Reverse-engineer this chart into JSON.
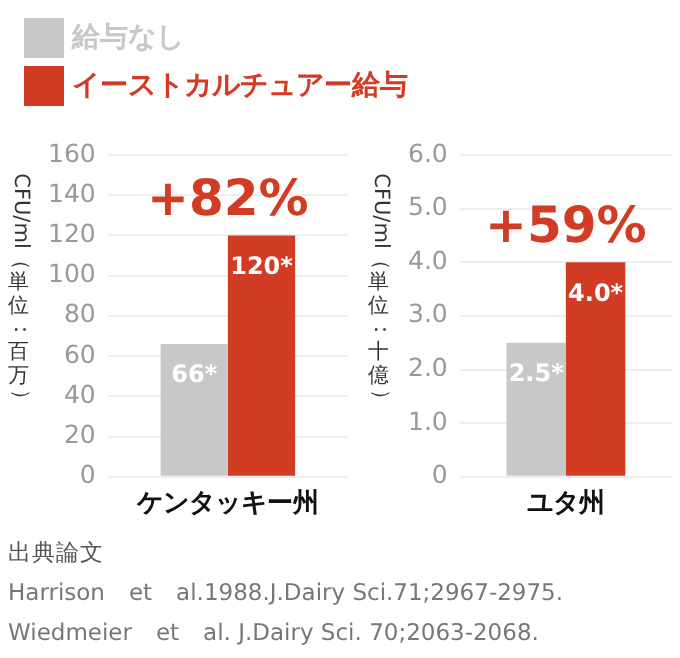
{
  "chart_data": [
    {
      "type": "bar",
      "ylabel": "CFU/ml（単位：百万）",
      "categories": [
        "ケンタッキー州"
      ],
      "legend": "top left",
      "series": [
        {
          "name": "給与なし",
          "color": "#c8c8c8",
          "values": [
            66
          ],
          "value_labels": [
            "66*"
          ]
        },
        {
          "name": "イーストカルチュアー給与",
          "color": "#d23b24",
          "values": [
            120
          ],
          "value_labels": [
            "120*"
          ]
        }
      ],
      "ylim": [
        0,
        160
      ],
      "yticks": [
        0,
        20,
        40,
        60,
        80,
        100,
        120,
        140,
        160
      ],
      "grid": "y",
      "annotations": [
        "+82%"
      ]
    },
    {
      "type": "bar",
      "ylabel": "CFU/ml（単位：十億）",
      "categories": [
        "ユタ州"
      ],
      "series": [
        {
          "color": "#c8c8c8",
          "values": [
            2.5
          ],
          "value_labels": [
            "2.5*"
          ]
        },
        {
          "color": "#d23b24",
          "values": [
            4.0
          ],
          "value_labels": [
            "4.0*"
          ]
        }
      ],
      "ylim": [
        0,
        6
      ],
      "yticks": [
        0,
        {
          "value": 1,
          "label": "1.0"
        },
        {
          "value": 2,
          "label": "2.0"
        },
        {
          "value": 3,
          "label": "3.0"
        },
        {
          "value": 4,
          "label": "4.0"
        },
        {
          "value": 5,
          "label": "5.0"
        },
        {
          "value": 6,
          "label": "6.0"
        }
      ],
      "grid": "y",
      "annotations": [
        "+59%",
        "出典論文",
        "Harrison　et　al.1988.J.Dairy Sci.71;2967-2975.",
        "Wiedmeier　et　al. J.Dairy Sci. 70;2063-2068."
      ]
    }
  ]
}
